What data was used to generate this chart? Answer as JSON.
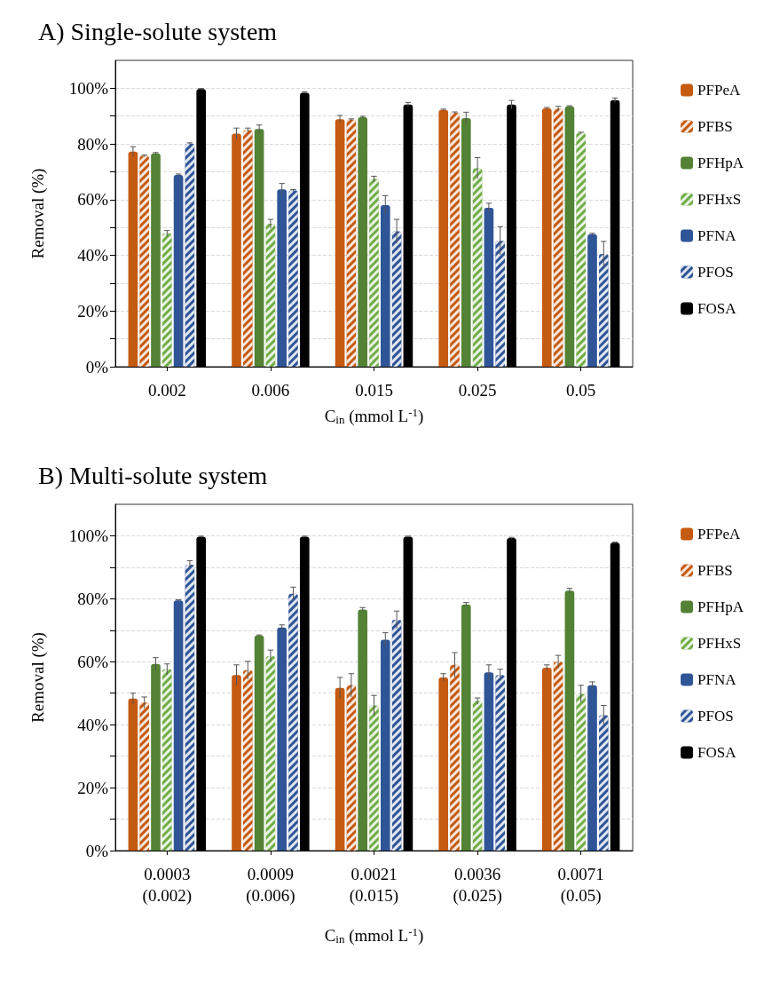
{
  "chart_data": [
    {
      "type": "bar",
      "title": "A) Single-solute system",
      "xlabel": "C$_{in}$ (mmol L$^{-1}$)",
      "ylabel": "Removal (%)",
      "categories": [
        "0.002",
        "0.006",
        "0.015",
        "0.025",
        "0.05"
      ],
      "ylim": [
        0,
        110
      ],
      "yticks": [
        {
          "value": 0,
          "label": "0%"
        },
        {
          "value": 10,
          "label": null
        },
        {
          "value": 20,
          "label": "20%"
        },
        {
          "value": 30,
          "label": null
        },
        {
          "value": 40,
          "label": "40%"
        },
        {
          "value": 50,
          "label": null
        },
        {
          "value": 60,
          "label": "60%"
        },
        {
          "value": 70,
          "label": null
        },
        {
          "value": 80,
          "label": "80%"
        },
        {
          "value": 90,
          "label": null
        },
        {
          "value": 100,
          "label": "100%"
        }
      ],
      "grid": "y",
      "legend": "right",
      "series": [
        {
          "name": "PFPeA",
          "color": "#c55a11",
          "values": [
            77.2,
            83.7,
            88.9,
            92.2,
            92.8
          ],
          "errors": [
            1.8,
            2,
            1.3,
            0.3,
            0.3
          ]
        },
        {
          "name": "PFBS",
          "color": "#c55a11",
          "values": [
            75.7,
            85,
            88.7,
            91.2,
            92.6
          ],
          "errors": [
            0.3,
            0.7,
            0.3,
            0.3,
            0.9
          ]
        },
        {
          "name": "PFHpA",
          "color": "#548235",
          "values": [
            76.6,
            85.4,
            89.6,
            89.3,
            93.5
          ],
          "errors": [
            0.3,
            1.4,
            0.3,
            2.1,
            0.2
          ]
        },
        {
          "name": "PFHxS",
          "color": "#70ad47",
          "values": [
            47.9,
            51.3,
            67.4,
            71.3,
            83.9
          ],
          "errors": [
            1,
            1.6,
            1,
            3.8,
            0.3
          ]
        },
        {
          "name": "PFNA",
          "color": "#2f5597",
          "values": [
            68.9,
            63.7,
            58,
            57.1,
            47.6
          ],
          "errors": [
            0.3,
            2.1,
            3.4,
            1.6,
            0.3
          ]
        },
        {
          "name": "PFOS",
          "color": "#2f5597",
          "values": [
            80.1,
            63.3,
            48.6,
            45.2,
            40.5
          ],
          "errors": [
            0.3,
            0.3,
            4.3,
            5.1,
            4.5
          ]
        },
        {
          "name": "FOSA",
          "color": "#000000",
          "values": [
            99.7,
            98.4,
            94.1,
            94.1,
            95.7
          ],
          "errors": [
            0.2,
            0.3,
            0.8,
            1.5,
            0.8
          ]
        }
      ]
    },
    {
      "type": "bar",
      "title": "B) Multi-solute system",
      "xlabel": "C$_{in}$ (mmol L$^{-1}$)",
      "ylabel": "Removal (%)",
      "categories": [
        "0.0003\n(0.002)",
        "0.0009\n(0.006)",
        "0.0021\n(0.015)",
        "0.0036\n(0.025)",
        "0.0071\n(0.05)"
      ],
      "ylim": [
        0,
        110
      ],
      "yticks": [
        {
          "value": 0,
          "label": "0%"
        },
        {
          "value": 10,
          "label": null
        },
        {
          "value": 20,
          "label": "20%"
        },
        {
          "value": 30,
          "label": null
        },
        {
          "value": 40,
          "label": "40%"
        },
        {
          "value": 50,
          "label": null
        },
        {
          "value": 60,
          "label": "60%"
        },
        {
          "value": 70,
          "label": null
        },
        {
          "value": 80,
          "label": "80%"
        },
        {
          "value": 90,
          "label": null
        },
        {
          "value": 100,
          "label": "100%"
        }
      ],
      "grid": "y",
      "legend": "right",
      "series": [
        {
          "name": "PFPeA",
          "color": "#c55a11",
          "values": [
            48.3,
            55.8,
            51.7,
            55,
            58.1
          ],
          "errors": [
            1.7,
            3.2,
            3.3,
            1.2,
            0.9
          ]
        },
        {
          "name": "PFBS",
          "color": "#c55a11",
          "values": [
            47,
            57.3,
            52.5,
            59,
            60
          ],
          "errors": [
            1.8,
            2.8,
            3.7,
            3.9,
            2
          ]
        },
        {
          "name": "PFHpA",
          "color": "#548235",
          "values": [
            59.3,
            68.3,
            76.6,
            78.2,
            82.6
          ],
          "errors": [
            2,
            0.2,
            0.6,
            0.6,
            0.7
          ]
        },
        {
          "name": "PFHxS",
          "color": "#70ad47",
          "values": [
            57.6,
            61.8,
            46.1,
            47.5,
            49.8
          ],
          "errors": [
            1.7,
            1.9,
            3.2,
            1,
            2.7
          ]
        },
        {
          "name": "PFNA",
          "color": "#2f5597",
          "values": [
            79.5,
            70.9,
            67,
            56.6,
            52.5
          ],
          "errors": [
            0.2,
            0.8,
            2.2,
            2.4,
            1.1
          ]
        },
        {
          "name": "PFOS",
          "color": "#2f5597",
          "values": [
            90.8,
            81.6,
            73.3,
            55.8,
            43
          ],
          "errors": [
            1.3,
            2.1,
            2.8,
            1.8,
            3.1
          ]
        },
        {
          "name": "FOSA",
          "color": "#000000",
          "values": [
            99.7,
            99.7,
            99.7,
            99.3,
            97.8
          ],
          "errors": [
            0.2,
            0.2,
            0.2,
            0.2,
            0.2
          ]
        }
      ]
    }
  ]
}
